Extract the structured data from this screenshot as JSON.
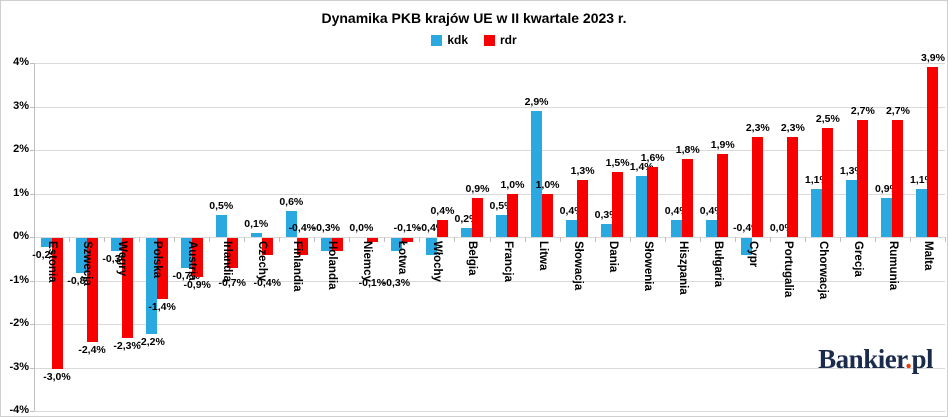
{
  "title": "Dynamika PKB krajów UE w II kwartale 2023 r.",
  "legend": [
    {
      "label": "kdk",
      "color": "#2aa9e1"
    },
    {
      "label": "rdr",
      "color": "#f80000"
    }
  ],
  "branding": {
    "logo_main": "Bankier",
    "logo_dot": ".",
    "logo_suffix": "pl"
  },
  "colors": {
    "kdk": "#2aa9e1",
    "rdr": "#f80000",
    "gridline": "#d9d9d9",
    "axis": "#bfbfbf",
    "text": "#000000",
    "logo_navy": "#1a2b4c",
    "logo_dot": "#e63f0a"
  },
  "chart_data": {
    "type": "bar",
    "title": "Dynamika PKB krajów UE w II kwartale 2023 r.",
    "xlabel": "",
    "ylabel": "",
    "ylim": [
      -4,
      4
    ],
    "grid": "horizontal",
    "legend_position": "top",
    "y_ticks": [
      {
        "value": 4,
        "label": "4%"
      },
      {
        "value": 3,
        "label": "3%"
      },
      {
        "value": 2,
        "label": "2%"
      },
      {
        "value": 1,
        "label": "1%"
      },
      {
        "value": 0,
        "label": "0%"
      },
      {
        "value": -1,
        "label": "-1%"
      },
      {
        "value": -2,
        "label": "-2%"
      },
      {
        "value": -3,
        "label": "-3%"
      },
      {
        "value": -4,
        "label": "-4%"
      }
    ],
    "categories": [
      "Estonia",
      "Szwecja",
      "Węgry",
      "Polska",
      "Austria",
      "Irlandia",
      "Czechy",
      "Finlandia",
      "Holandia",
      "Niemcy",
      "Łotwa",
      "Włochy",
      "Belgia",
      "Francja",
      "Litwa",
      "Słowacja",
      "Dania",
      "Słowenia",
      "Hiszpania",
      "Bułgaria",
      "Cypr",
      "Portugalia",
      "Chorwacja",
      "Grecja",
      "Rumunia",
      "Malta"
    ],
    "series": [
      {
        "name": "kdk",
        "color": "#2aa9e1",
        "values": [
          -0.2,
          -0.8,
          -0.3,
          -2.2,
          -0.7,
          0.5,
          0.1,
          0.6,
          -0.3,
          0.0,
          -0.3,
          -0.4,
          0.2,
          0.5,
          2.9,
          0.4,
          0.3,
          1.4,
          0.4,
          0.4,
          -0.4,
          0.0,
          1.1,
          1.3,
          0.9,
          1.1
        ],
        "labels": [
          "-0,2%",
          "-0,8%",
          "-0,3%",
          "-2,2%",
          "-0,7%",
          "0,5%",
          "0,1%",
          "0,6%",
          "-0,3%",
          "0,0%",
          "-0,3%",
          "-0,4%",
          "0,2%",
          "0,5%",
          "2,9%",
          "0,4%",
          "0,3%",
          "1,4%",
          "0,4%",
          "0,4%",
          "-0,4%",
          "0,0%",
          "1,1%",
          "1,3%",
          "0,9%",
          "1,1%"
        ],
        "label_pos": [
          "auto",
          "auto",
          "auto",
          "auto",
          "auto",
          "auto",
          "auto",
          "auto",
          "axis",
          "auto",
          "low",
          "axis",
          "auto",
          "auto",
          "auto",
          "auto",
          "auto",
          "auto",
          "auto",
          "auto",
          "axis",
          "auto",
          "auto",
          "auto",
          "auto",
          "auto"
        ]
      },
      {
        "name": "rdr",
        "color": "#f80000",
        "values": [
          -3.0,
          -2.4,
          -2.3,
          -1.4,
          -0.9,
          -0.7,
          -0.4,
          -0.4,
          -0.3,
          -0.1,
          -0.1,
          0.4,
          0.9,
          1.0,
          1.0,
          1.3,
          1.5,
          1.6,
          1.8,
          1.9,
          2.3,
          2.3,
          2.5,
          2.7,
          2.7,
          3.9
        ],
        "labels": [
          "-3,0%",
          "-2,4%",
          "-2,3%",
          "-1,4%",
          "-0,9%",
          "-0,7%",
          "-0,4%",
          "-0,4%",
          "-0,3%",
          "-0,1%",
          "-0,1%",
          "0,4%",
          "0,9%",
          "1,0%",
          "1,0%",
          "1,3%",
          "1,5%",
          "1,6%",
          "1,8%",
          "1,9%",
          "2,3%",
          "2,3%",
          "2,5%",
          "2,7%",
          "2,7%",
          "3,9%"
        ],
        "label_pos": [
          "auto",
          "auto",
          "auto",
          "auto",
          "auto",
          "low",
          "low",
          "axis",
          "hidden",
          "low",
          "axis",
          "auto",
          "auto",
          "auto",
          "auto",
          "auto",
          "auto",
          "auto",
          "auto",
          "auto",
          "auto",
          "auto",
          "auto",
          "auto",
          "auto",
          "auto"
        ]
      }
    ]
  }
}
